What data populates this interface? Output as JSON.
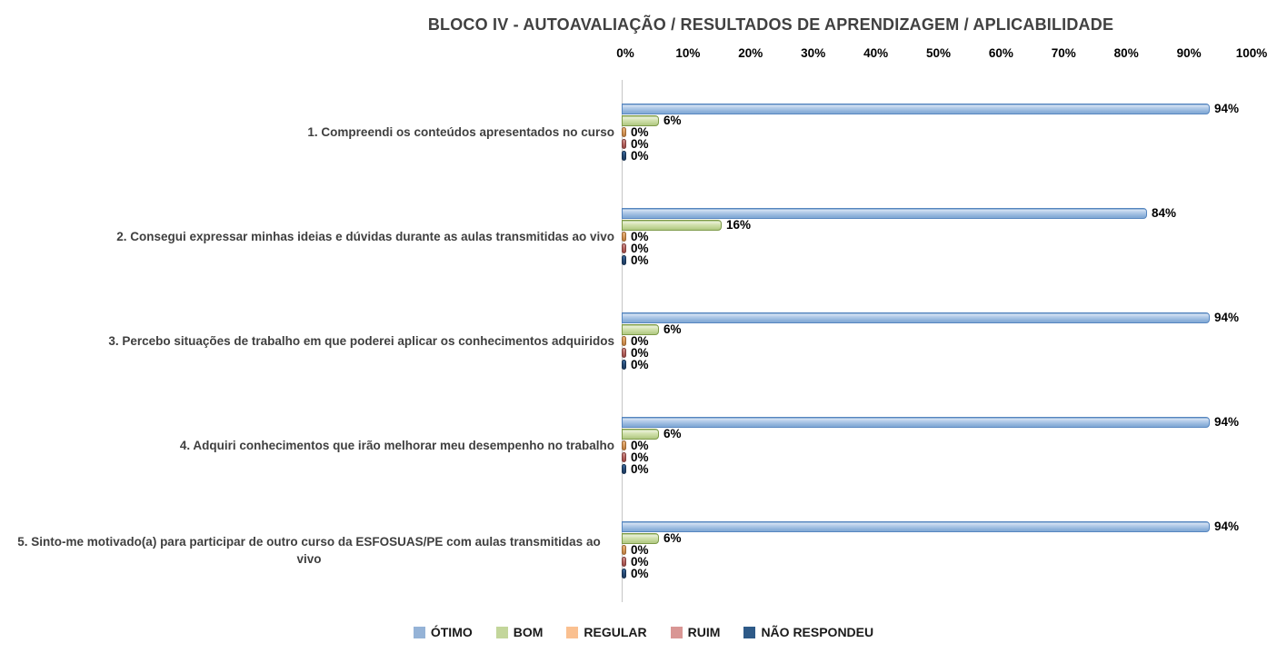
{
  "title": "BLOCO IV - AUTOAVALIAÇÃO / RESULTADOS DE APRENDIZAGEM / APLICABILIDADE",
  "chart_data": {
    "type": "bar",
    "orientation": "horizontal",
    "title": "BLOCO IV - AUTOAVALIAÇÃO / RESULTADOS DE APRENDIZAGEM / APLICABILIDADE",
    "xlabel": "",
    "ylabel": "",
    "xlim": [
      0,
      100
    ],
    "grid": false,
    "legend_position": "bottom",
    "x_ticks": [
      "0%",
      "10%",
      "20%",
      "30%",
      "40%",
      "50%",
      "60%",
      "70%",
      "80%",
      "90%",
      "100%"
    ],
    "categories": [
      "1. Compreendi os conteúdos apresentados no curso",
      "2. Consegui expressar minhas ideias e dúvidas durante as aulas transmitidas ao vivo",
      "3. Percebo situações de trabalho em que poderei aplicar os conhecimentos adquiridos",
      "4. Adquiri conhecimentos que irão melhorar meu desempenho no trabalho",
      "5. Sinto-me motivado(a) para participar de outro curso da ESFOSUAS/PE com aulas transmitidas ao vivo"
    ],
    "series": [
      {
        "name": "ÓTIMO",
        "slug": "otimo",
        "color": "#95B3D7",
        "values": [
          94,
          84,
          94,
          94,
          94
        ]
      },
      {
        "name": "BOM",
        "slug": "bom",
        "color": "#C3D69B",
        "values": [
          6,
          16,
          6,
          6,
          6
        ]
      },
      {
        "name": "REGULAR",
        "slug": "regular",
        "color": "#FAC090",
        "values": [
          0,
          0,
          0,
          0,
          0
        ]
      },
      {
        "name": "RUIM",
        "slug": "ruim",
        "color": "#D99694",
        "values": [
          0,
          0,
          0,
          0,
          0
        ]
      },
      {
        "name": "NÃO RESPONDEU",
        "slug": "nao-respondeu",
        "color": "#2E5A88",
        "values": [
          0,
          0,
          0,
          0,
          0
        ]
      }
    ],
    "value_label_suffix": "%"
  }
}
